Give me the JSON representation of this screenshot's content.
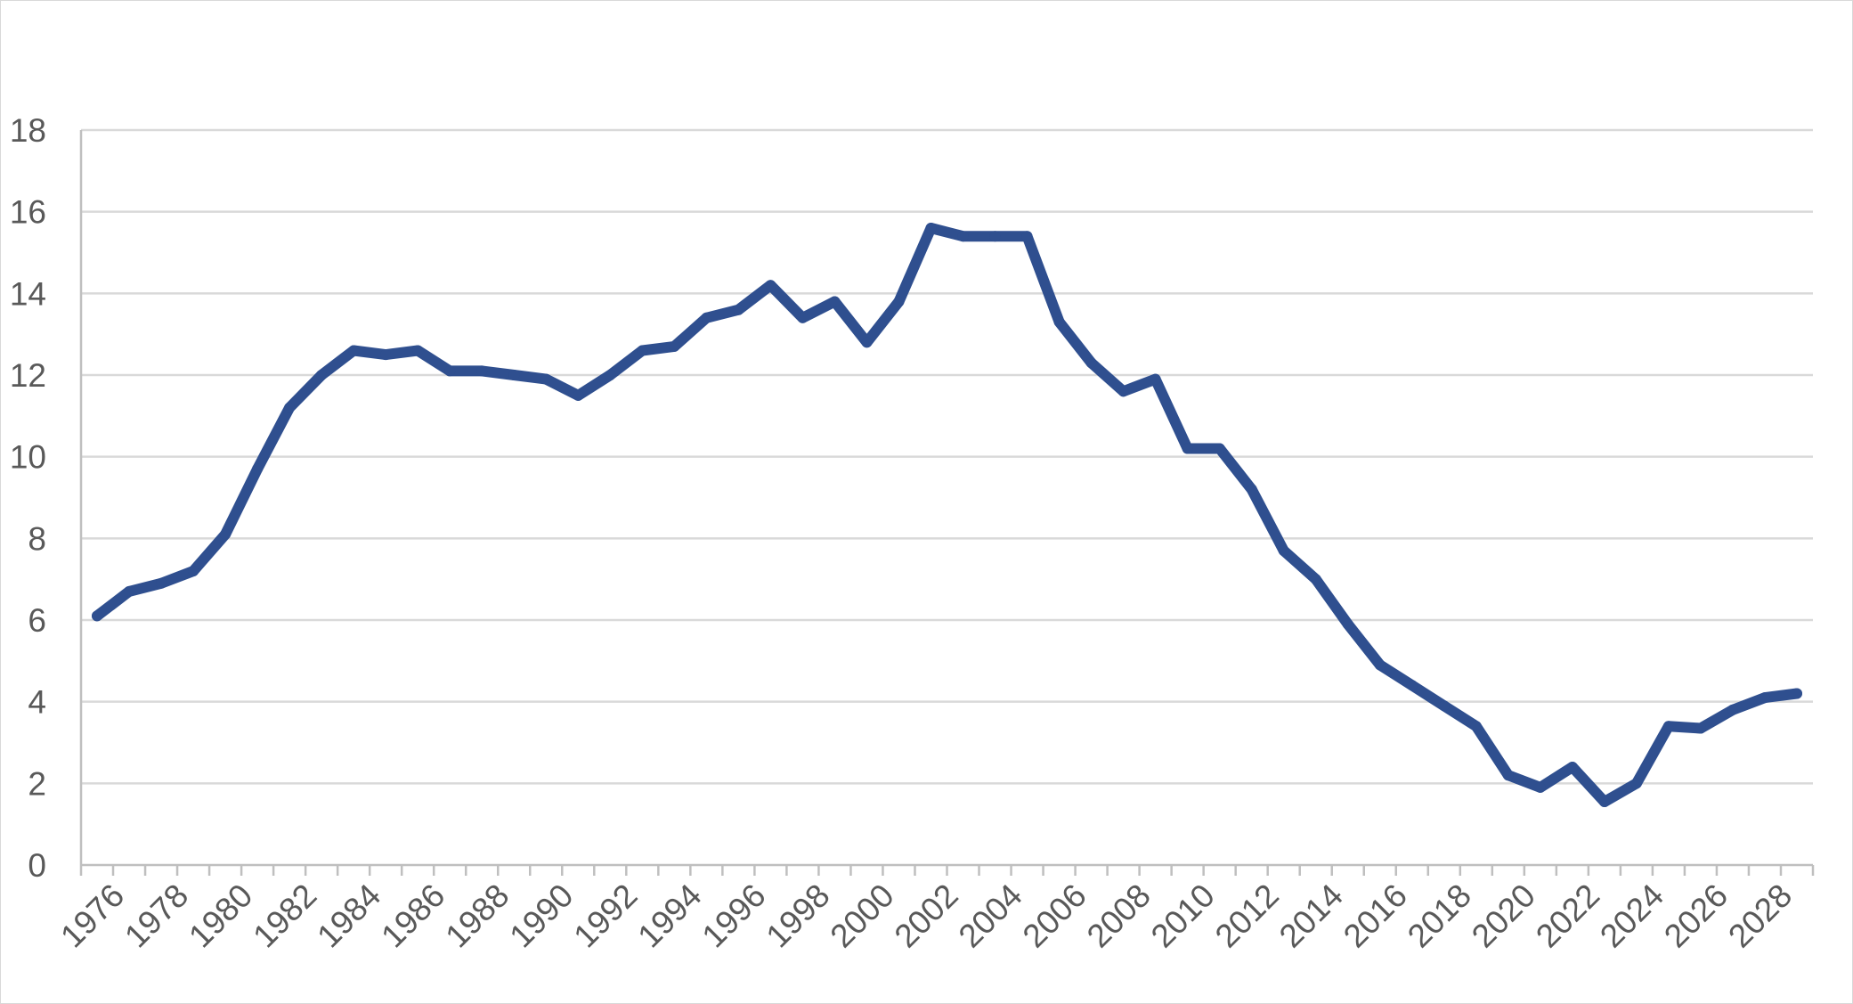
{
  "chart_data": {
    "type": "line",
    "title": "",
    "xlabel": "",
    "ylabel": "",
    "x": [
      1976,
      1977,
      1978,
      1979,
      1980,
      1981,
      1982,
      1983,
      1984,
      1985,
      1986,
      1987,
      1988,
      1989,
      1990,
      1991,
      1992,
      1993,
      1994,
      1995,
      1996,
      1997,
      1998,
      1999,
      2000,
      2001,
      2002,
      2003,
      2004,
      2005,
      2006,
      2007,
      2008,
      2009,
      2010,
      2011,
      2012,
      2013,
      2014,
      2015,
      2016,
      2017,
      2018,
      2019,
      2020,
      2021,
      2022,
      2023,
      2024,
      2025,
      2026,
      2027,
      2028,
      2029
    ],
    "series": [
      {
        "values": [
          6.1,
          6.7,
          6.9,
          7.2,
          8.1,
          9.7,
          11.2,
          12.0,
          12.6,
          12.5,
          12.6,
          12.1,
          12.1,
          12.0,
          11.9,
          11.5,
          12.0,
          12.6,
          12.7,
          13.4,
          13.6,
          14.2,
          13.4,
          13.8,
          12.8,
          13.8,
          15.6,
          15.4,
          15.4,
          15.4,
          13.3,
          12.3,
          11.6,
          11.9,
          10.2,
          10.2,
          9.2,
          7.7,
          7.0,
          5.9,
          4.9,
          4.4,
          3.9,
          3.4,
          2.2,
          1.9,
          2.4,
          1.55,
          2.0,
          3.4,
          3.35,
          3.8,
          4.1,
          4.2
        ],
        "color": "#2f4f8f"
      }
    ],
    "y_ticks": [
      "0",
      "2",
      "4",
      "6",
      "8",
      "10",
      "12",
      "14",
      "16",
      "18"
    ],
    "x_tick_labels": [
      "1976",
      "1978",
      "1980",
      "1982",
      "1984",
      "1986",
      "1988",
      "1990",
      "1992",
      "1994",
      "1996",
      "1998",
      "2000",
      "2002",
      "2004",
      "2006",
      "2008",
      "2010",
      "2012",
      "2014",
      "2016",
      "2018",
      "2020",
      "2022",
      "2024",
      "2026",
      "2028"
    ],
    "ylim": [
      0,
      18
    ],
    "xlim": [
      1975.5,
      2029.5
    ],
    "grid": true,
    "legend": "none",
    "gridline_color": "#d9d9d9",
    "tick_label_color": "#595959"
  }
}
